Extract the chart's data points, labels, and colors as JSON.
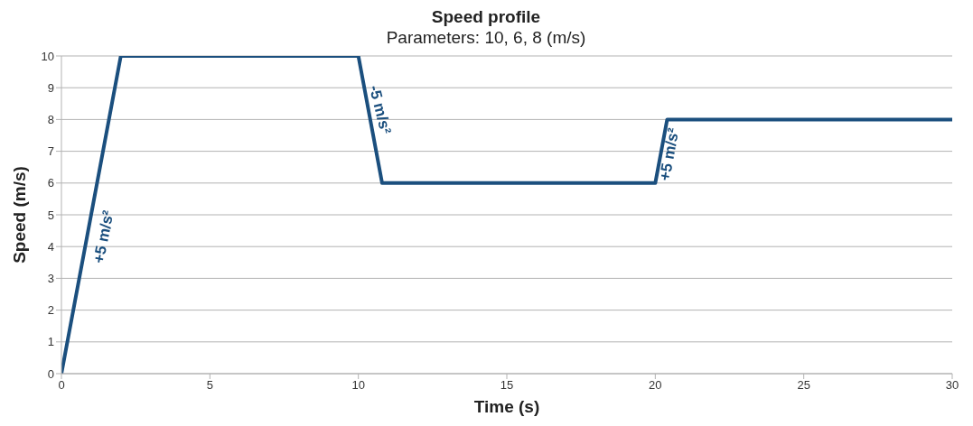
{
  "chart_data": {
    "type": "line",
    "title": "Speed profile",
    "subtitle": "Parameters: 10, 6, 8 (m/s)",
    "xlabel": "Time (s)",
    "ylabel": "Speed (m/s)",
    "x": [
      0,
      2,
      10,
      10.8,
      20,
      20.4,
      30
    ],
    "series": [
      {
        "color": "#1b4f7e",
        "values": [
          0,
          10,
          10,
          6,
          6,
          8,
          8
        ]
      }
    ],
    "xlim": [
      0,
      30
    ],
    "xticks": [
      0,
      5,
      10,
      15,
      20,
      25,
      30
    ],
    "ylim": [
      0,
      10
    ],
    "yticks": [
      0,
      1,
      2,
      3,
      4,
      5,
      6,
      7,
      8,
      9,
      10
    ],
    "grid": "y",
    "marker": "none",
    "line_style": "solid",
    "legend": false,
    "annotations": [
      "+5 m/s²",
      "-5 m/s²",
      "+5 m/s²"
    ]
  }
}
